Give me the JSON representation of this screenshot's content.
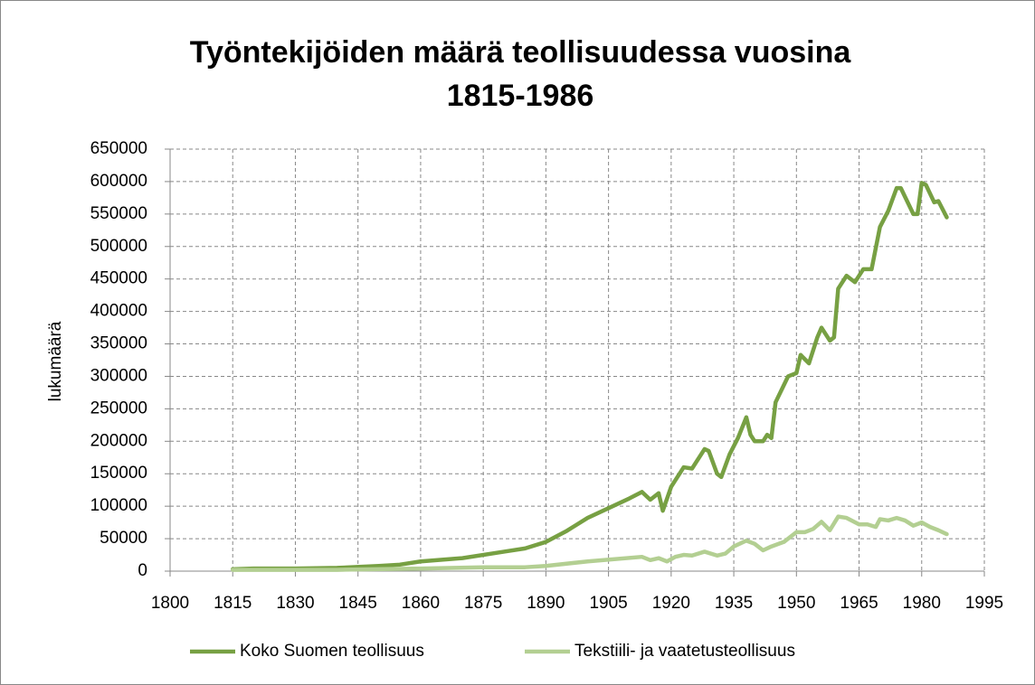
{
  "chart_data": {
    "type": "line",
    "title": [
      "Työntekijöiden määrä teollisuudessa vuosina",
      "1815-1986"
    ],
    "y_label": "lukumäärä",
    "xlim": [
      1800,
      1995
    ],
    "xticks": [
      1800,
      1815,
      1830,
      1845,
      1860,
      1875,
      1890,
      1905,
      1920,
      1935,
      1950,
      1965,
      1980,
      1995
    ],
    "ylim": [
      0,
      650000
    ],
    "yticks": [
      0,
      50000,
      100000,
      150000,
      200000,
      250000,
      300000,
      350000,
      400000,
      450000,
      500000,
      550000,
      600000,
      650000
    ],
    "grid": true,
    "legend": "bottom",
    "series": [
      {
        "name": "Koko Suomen teollisuus",
        "color": "#77a043",
        "x": [
          1815,
          1820,
          1830,
          1840,
          1850,
          1855,
          1860,
          1870,
          1880,
          1885,
          1890,
          1895,
          1900,
          1905,
          1910,
          1913,
          1915,
          1917,
          1918,
          1920,
          1921,
          1923,
          1925,
          1928,
          1929,
          1931,
          1932,
          1934,
          1936,
          1938,
          1939,
          1940,
          1942,
          1943,
          1944,
          1945,
          1948,
          1950,
          1951,
          1953,
          1955,
          1956,
          1958,
          1959,
          1960,
          1962,
          1964,
          1966,
          1968,
          1970,
          1972,
          1974,
          1975,
          1978,
          1979,
          1980,
          1981,
          1983,
          1984,
          1986
        ],
        "values": [
          3000,
          4000,
          4000,
          5000,
          8000,
          10000,
          15000,
          20000,
          30000,
          35000,
          45000,
          62000,
          82000,
          97000,
          112000,
          122000,
          110000,
          120000,
          93000,
          130000,
          140000,
          160000,
          158000,
          188000,
          185000,
          150000,
          145000,
          180000,
          205000,
          237000,
          210000,
          200000,
          200000,
          210000,
          205000,
          260000,
          300000,
          305000,
          333000,
          320000,
          360000,
          375000,
          355000,
          360000,
          435000,
          455000,
          445000,
          465000,
          465000,
          530000,
          555000,
          590000,
          590000,
          550000,
          550000,
          598000,
          595000,
          568000,
          570000,
          545000
        ]
      },
      {
        "name": "Tekstiili- ja vaatetusteollisuus",
        "color": "#b3cf92",
        "x": [
          1815,
          1840,
          1860,
          1875,
          1885,
          1890,
          1900,
          1913,
          1915,
          1917,
          1919,
          1921,
          1923,
          1925,
          1928,
          1931,
          1933,
          1935,
          1938,
          1940,
          1942,
          1944,
          1947,
          1950,
          1952,
          1954,
          1956,
          1958,
          1960,
          1962,
          1965,
          1967,
          1969,
          1970,
          1972,
          1974,
          1976,
          1978,
          1980,
          1982,
          1984,
          1986
        ],
        "values": [
          2000,
          2000,
          4000,
          6000,
          6000,
          8000,
          15000,
          22000,
          17000,
          20000,
          15000,
          22000,
          25000,
          24000,
          30000,
          24000,
          27000,
          38000,
          47000,
          42000,
          32000,
          38000,
          45000,
          60000,
          60000,
          65000,
          76000,
          63000,
          84000,
          82000,
          72000,
          72000,
          68000,
          80000,
          78000,
          82000,
          78000,
          70000,
          75000,
          68000,
          63000,
          57000
        ]
      }
    ]
  }
}
